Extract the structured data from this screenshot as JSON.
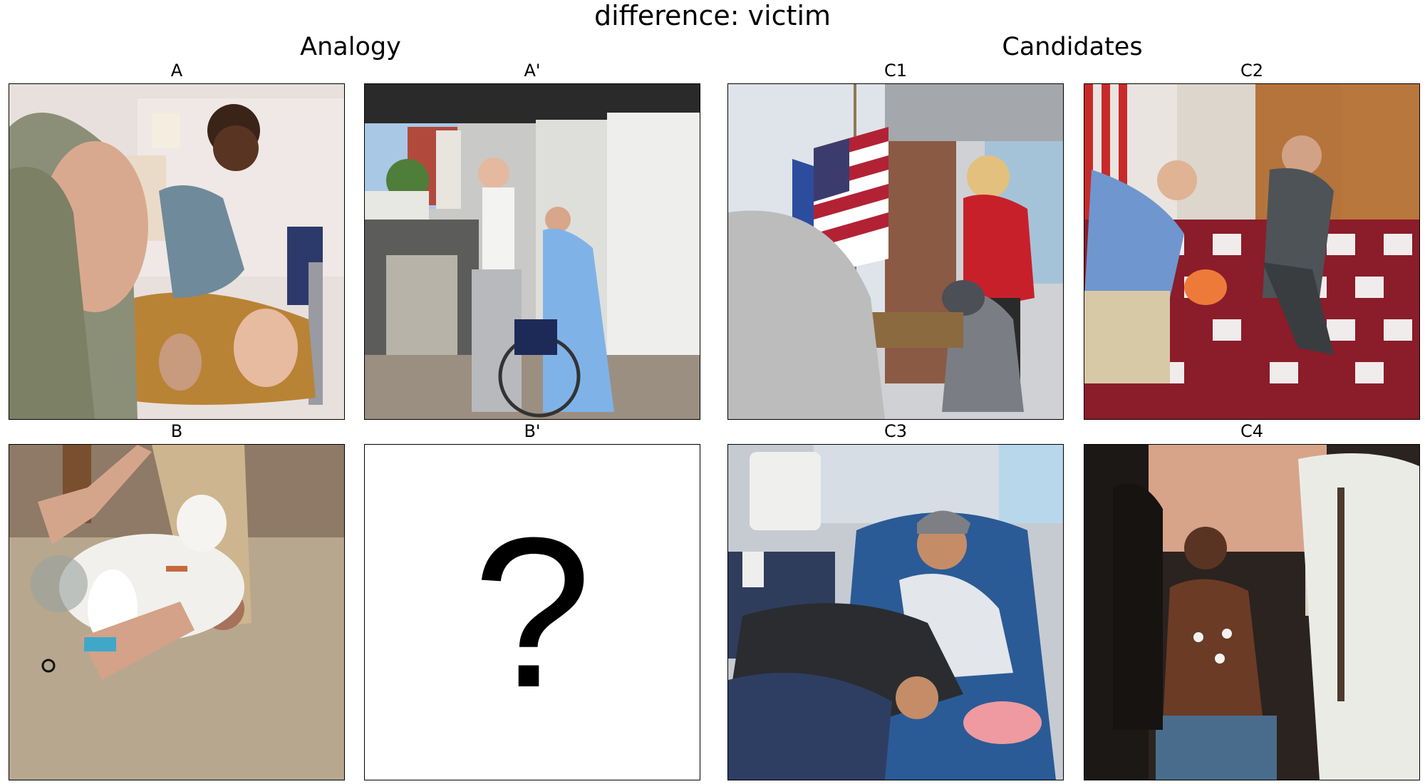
{
  "figure": {
    "title": "difference: victim",
    "analogy_heading": "Analogy",
    "candidates_heading": "Candidates"
  },
  "panels": {
    "a": {
      "label": "A",
      "icon": "photo-veterinary-exam"
    },
    "a_prime": {
      "label": "A'",
      "icon": "photo-nurse-assisting-man"
    },
    "b": {
      "label": "B",
      "icon": "photo-dog-leg-bandage"
    },
    "b_prime": {
      "label": "B'",
      "placeholder": "?"
    },
    "c1": {
      "label": "C1",
      "icon": "photo-woman-with-dog"
    },
    "c2": {
      "label": "C2",
      "icon": "photo-cpr-training"
    },
    "c3": {
      "label": "C3",
      "icon": "photo-man-in-dialysis-chair"
    },
    "c4": {
      "label": "C4",
      "icon": "photo-patient-with-ecg-leads"
    }
  },
  "colors": {
    "border": "#000000",
    "background": "#ffffff"
  }
}
